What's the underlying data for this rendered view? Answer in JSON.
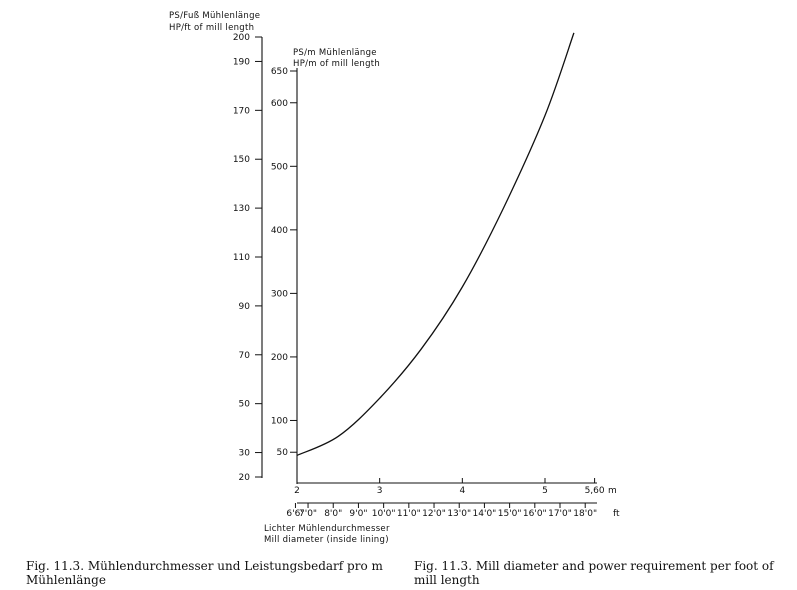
{
  "chart_data": {
    "type": "line",
    "left_axis_title": [
      "PS/Fuß Mühlenlänge",
      "HP/ft of mill length"
    ],
    "left_axis_ticks": [
      20,
      30,
      50,
      70,
      90,
      110,
      130,
      150,
      170,
      190,
      200
    ],
    "inner_axis_title": [
      "PS/m Mühlenlänge",
      "HP/m of mill length"
    ],
    "inner_axis_ticks": [
      50,
      100,
      200,
      300,
      400,
      500,
      600,
      650
    ],
    "x_axis_m_ticks": [
      "2",
      "3",
      "4",
      "5",
      "5,60"
    ],
    "x_axis_m_unit": "m",
    "x_axis_ft_ticks": [
      "6'6\"",
      "7'0\"",
      "8'0\"",
      "9'0\"",
      "10'0\"",
      "11'0\"",
      "12'0\"",
      "13'0\"",
      "14'0\"",
      "15'0\"",
      "16'0\"",
      "17'0\"",
      "18'0\""
    ],
    "x_axis_ft_unit": "ft",
    "x_axis_title": [
      "Lichter Mühlendurchmesser",
      "Mill diameter (inside lining)"
    ],
    "series": [
      {
        "x": [
          2.0,
          2.5,
          3.0,
          3.5,
          4.0,
          4.5,
          5.0,
          5.35
        ],
        "y": [
          45,
          75,
          135,
          212,
          310,
          435,
          580,
          710
        ]
      }
    ]
  },
  "captions": {
    "german": [
      "Fig. 11.3.   Mühlendurchmesser und Leistungsbedarf pro m",
      "Mühlenlänge"
    ],
    "english": [
      "Fig. 11.3.   Mill diameter and power requirement per foot of",
      "mill length"
    ]
  }
}
